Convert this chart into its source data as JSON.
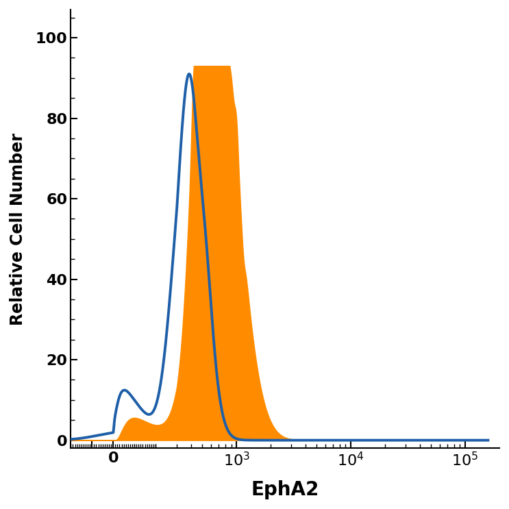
{
  "title": "",
  "xlabel": "EphA2",
  "ylabel": "Relative Cell Number",
  "ylim": [
    -2,
    107
  ],
  "yticks": [
    0,
    20,
    40,
    60,
    80,
    100
  ],
  "blue_color": "#1E5FA8",
  "orange_color": "#FF8C00",
  "blue_linewidth": 2.8,
  "background_color": "#ffffff",
  "xlabel_fontsize": 20,
  "ylabel_fontsize": 17,
  "tick_fontsize": 16,
  "linthresh": 300
}
